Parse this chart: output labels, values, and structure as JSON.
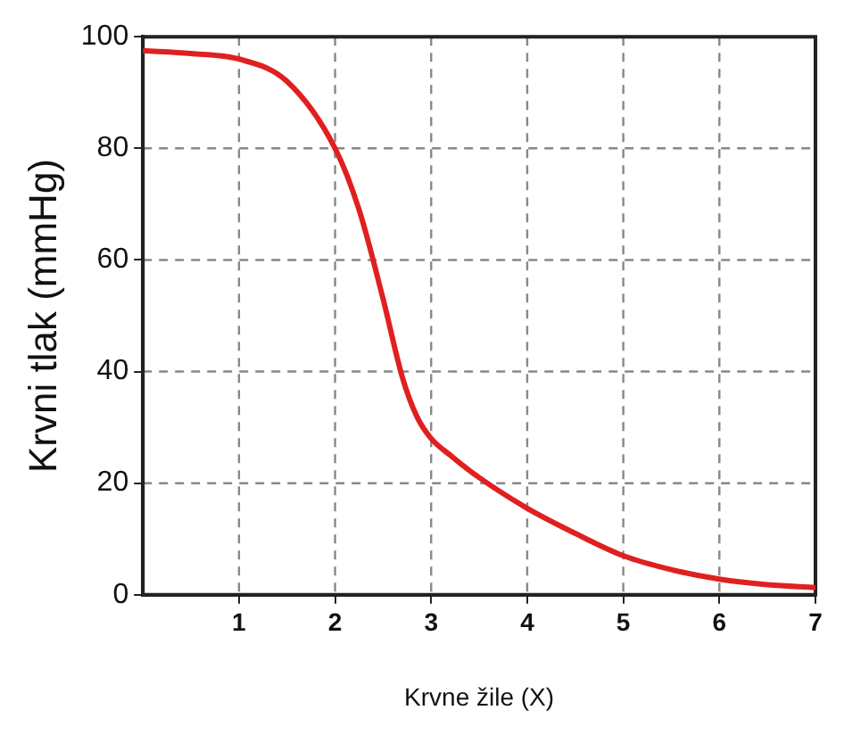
{
  "chart_data": {
    "type": "line",
    "xlabel": "Krvne žile (X)",
    "ylabel": "Krvni tlak (mmHg)",
    "xlim": [
      0,
      7
    ],
    "xticks": [
      1,
      2,
      3,
      4,
      5,
      6,
      7
    ],
    "ylim": [
      0,
      100
    ],
    "yticks": [
      0,
      20,
      40,
      60,
      80,
      100
    ],
    "grid": true,
    "legend": false,
    "marker": "none",
    "line_style": "solid",
    "series": [
      {
        "color": "#e02020",
        "x": [
          0,
          0.5,
          1,
          1.5,
          2,
          2.25,
          2.5,
          2.7,
          2.85,
          3,
          3.2,
          3.5,
          4,
          4.5,
          5,
          5.5,
          6,
          6.5,
          7
        ],
        "values": [
          97.5,
          97,
          96,
          92,
          80,
          69,
          53,
          39,
          32,
          28,
          25,
          21,
          15.5,
          11,
          7,
          4.5,
          2.8,
          1.8,
          1.3
        ]
      }
    ]
  }
}
